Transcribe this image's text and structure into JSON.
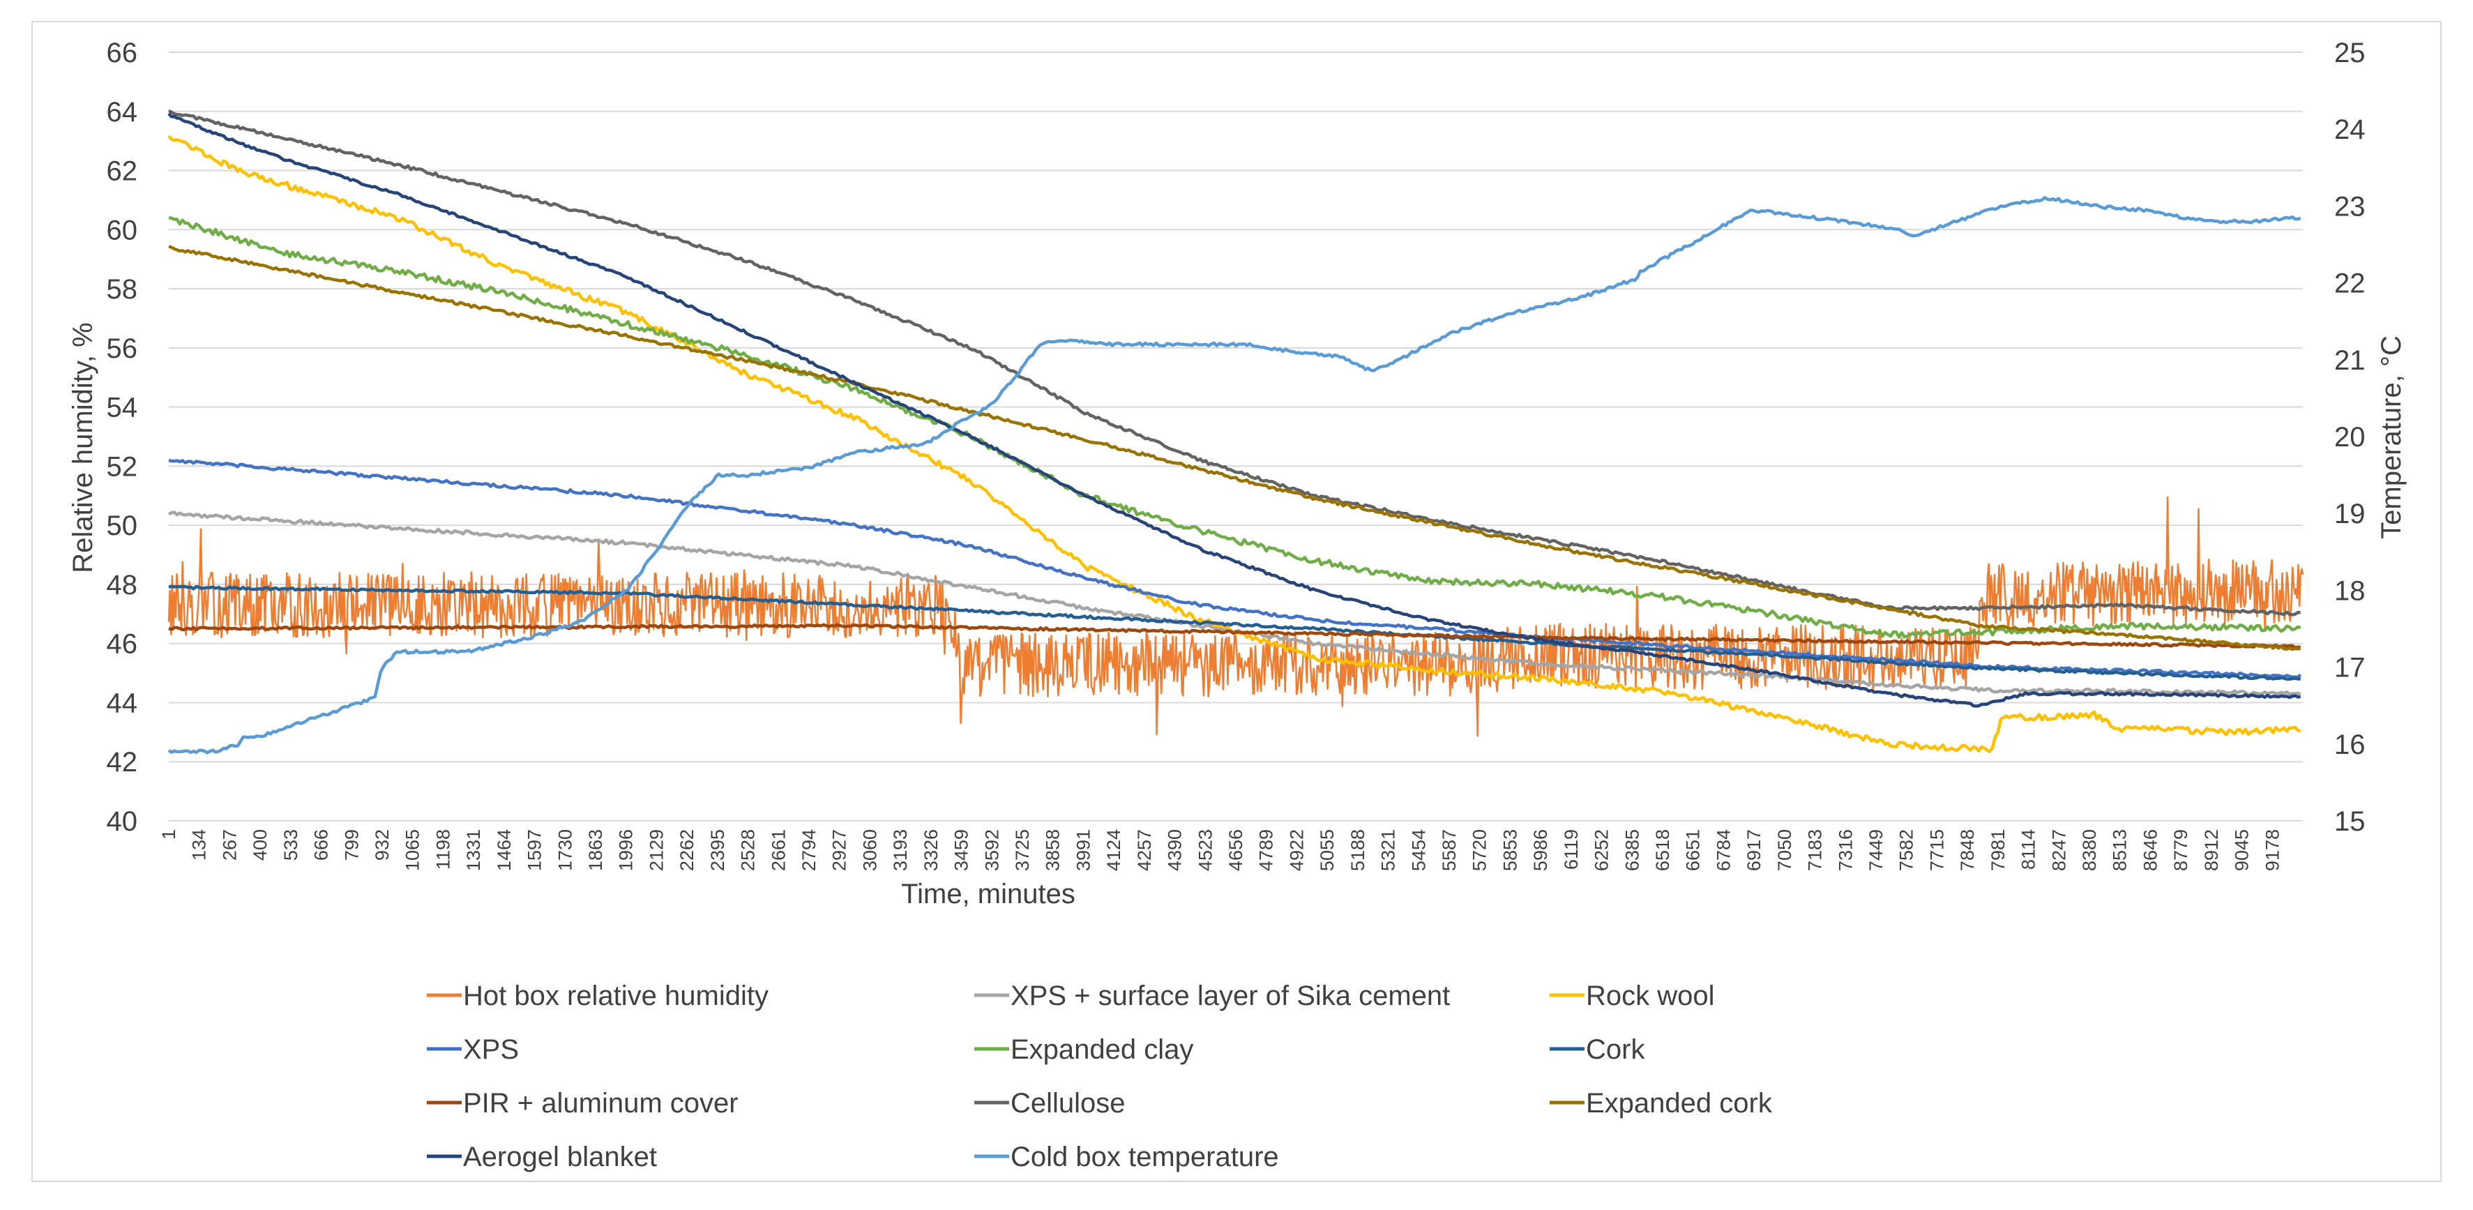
{
  "chart_data": {
    "type": "line",
    "xlabel": "Time, minutes",
    "ylabel_left": "Relative humidity, %",
    "ylabel_right": "Temperature, °C",
    "xlim": [
      1,
      9311
    ],
    "ylim_left": [
      40,
      66
    ],
    "ylim_right": [
      15,
      25
    ],
    "yticks_left": [
      "40",
      "42",
      "44",
      "46",
      "48",
      "50",
      "52",
      "54",
      "56",
      "58",
      "60",
      "62",
      "64",
      "66"
    ],
    "yticks_right": [
      "15",
      "16",
      "17",
      "18",
      "19",
      "20",
      "21",
      "22",
      "23",
      "24",
      "25"
    ],
    "xticks": [
      "1",
      "134",
      "267",
      "400",
      "533",
      "666",
      "799",
      "932",
      "1065",
      "1198",
      "1331",
      "1464",
      "1597",
      "1730",
      "1863",
      "1996",
      "2129",
      "2262",
      "2395",
      "2528",
      "2661",
      "2794",
      "2927",
      "3060",
      "3193",
      "3326",
      "3459",
      "3592",
      "3725",
      "3858",
      "3991",
      "4124",
      "4257",
      "4390",
      "4523",
      "4656",
      "4789",
      "4922",
      "5055",
      "5188",
      "5321",
      "5454",
      "5587",
      "5720",
      "5853",
      "5986",
      "6119",
      "6252",
      "6385",
      "6518",
      "6651",
      "6784",
      "6917",
      "7050",
      "7183",
      "7316",
      "7449",
      "7582",
      "7715",
      "7848",
      "7981",
      "8114",
      "8247",
      "8380",
      "8513",
      "8646",
      "8779",
      "8912",
      "9045",
      "9178"
    ],
    "grid": true,
    "series": [
      {
        "name": "Hot box relative humidity",
        "color": "#ED7D31",
        "axis": "left",
        "noise": 1.1,
        "x": [
          1,
          3400,
          3460,
          5600,
          6000,
          7850,
          7930,
          9300
        ],
        "y": [
          47.3,
          47.3,
          45.3,
          45.3,
          45.6,
          45.5,
          47.6,
          47.8
        ]
      },
      {
        "name": "XPS + surface layer of Sika cement",
        "color": "#A5A5A5",
        "axis": "left",
        "noise": 0.06,
        "x": [
          1,
          1000,
          2000,
          3000,
          4000,
          5000,
          6000,
          7000,
          7500,
          8000,
          8500,
          9300
        ],
        "y": [
          50.4,
          49.9,
          49.4,
          48.6,
          47.2,
          46.0,
          45.3,
          44.9,
          44.6,
          44.4,
          44.4,
          44.3
        ]
      },
      {
        "name": "Rock wool",
        "color": "#FFC000",
        "axis": "left",
        "noise": 0.1,
        "x": [
          1,
          300,
          1000,
          1500,
          2000,
          2500,
          3000,
          3500,
          4000,
          4500,
          5000,
          5500,
          6000,
          6500,
          7000,
          7500,
          7950,
          8000,
          8200,
          8400,
          8500,
          8700,
          9000,
          9300
        ],
        "y": [
          63.2,
          62.0,
          60.4,
          58.6,
          57.2,
          55.2,
          53.6,
          51.5,
          48.6,
          46.8,
          45.5,
          45.1,
          44.8,
          44.4,
          43.6,
          42.6,
          42.4,
          43.5,
          43.5,
          43.6,
          43.1,
          43.1,
          43.0,
          43.1
        ]
      },
      {
        "name": "XPS",
        "color": "#4472C4",
        "axis": "left",
        "noise": 0.05,
        "x": [
          1,
          1000,
          2000,
          3000,
          3500,
          4000,
          4500,
          5000,
          6000,
          7000,
          8000,
          9300
        ],
        "y": [
          52.2,
          51.6,
          51.0,
          50.0,
          49.3,
          48.2,
          47.3,
          46.8,
          46.2,
          45.7,
          45.2,
          44.9
        ]
      },
      {
        "name": "Expanded clay",
        "color": "#70AD47",
        "axis": "left",
        "noise": 0.1,
        "x": [
          1,
          500,
          1000,
          1500,
          2000,
          2500,
          3000,
          3500,
          4000,
          4500,
          5000,
          5500,
          6000,
          6500,
          7000,
          7500,
          8000,
          8500,
          9300
        ],
        "y": [
          60.4,
          59.2,
          58.6,
          57.8,
          56.8,
          55.8,
          54.6,
          53.0,
          51.0,
          49.8,
          48.8,
          48.1,
          48.0,
          47.6,
          47.0,
          46.3,
          46.4,
          46.6,
          46.5
        ]
      },
      {
        "name": "Cork",
        "color": "#255E91",
        "axis": "left",
        "noise": 0.04,
        "x": [
          1,
          2000,
          3000,
          4000,
          5000,
          6000,
          7000,
          7800,
          8500,
          9300
        ],
        "y": [
          47.9,
          47.7,
          47.3,
          46.9,
          46.5,
          46.0,
          45.6,
          45.2,
          45.0,
          44.8
        ]
      },
      {
        "name": "PIR + aluminum cover",
        "color": "#9E480E",
        "axis": "left",
        "noise": 0.04,
        "x": [
          1,
          3000,
          6000,
          9300
        ],
        "y": [
          46.5,
          46.6,
          46.2,
          45.9
        ]
      },
      {
        "name": "Cellulose",
        "color": "#636363",
        "axis": "left",
        "noise": 0.05,
        "x": [
          1,
          1000,
          2000,
          2500,
          3000,
          3500,
          4000,
          4500,
          5000,
          5500,
          6000,
          6500,
          7000,
          7500,
          7950,
          8500,
          9300
        ],
        "y": [
          64.0,
          62.2,
          60.2,
          59.0,
          57.6,
          56.0,
          53.8,
          52.2,
          51.0,
          50.2,
          49.5,
          48.8,
          48.0,
          47.2,
          47.2,
          47.3,
          47.0
        ]
      },
      {
        "name": "Expanded cork",
        "color": "#997300",
        "axis": "left",
        "noise": 0.05,
        "x": [
          1,
          1000,
          2000,
          3000,
          4000,
          5000,
          6000,
          7000,
          7900,
          8500,
          9300
        ],
        "y": [
          59.4,
          57.9,
          56.4,
          54.8,
          52.9,
          50.9,
          49.3,
          47.9,
          46.6,
          46.3,
          45.8
        ]
      },
      {
        "name": "Aerogel blanket",
        "color": "#264478",
        "axis": "left",
        "noise": 0.04,
        "x": [
          1,
          250,
          500,
          1000,
          1500,
          2000,
          2500,
          3000,
          3500,
          4000,
          4500,
          5000,
          5500,
          6000,
          6500,
          7000,
          7500,
          7900,
          8100,
          8500,
          9300
        ],
        "y": [
          63.9,
          63.1,
          62.4,
          61.2,
          59.8,
          58.4,
          56.6,
          54.8,
          53.0,
          51.0,
          49.2,
          47.8,
          46.8,
          46.1,
          45.6,
          45.0,
          44.3,
          43.9,
          44.3,
          44.3,
          44.2
        ]
      },
      {
        "name": "Cold box temperature",
        "color": "#5B9BD5",
        "axis": "right",
        "noise": 0.02,
        "x": [
          1,
          200,
          310,
          320,
          400,
          700,
          850,
          900,
          930,
          1000,
          1300,
          1600,
          1800,
          1950,
          2000,
          2100,
          2262,
          2400,
          2528,
          2800,
          3000,
          3300,
          3459,
          3500,
          3600,
          3700,
          3800,
          3900,
          4100,
          4300,
          4700,
          4922,
          5100,
          5250,
          5400,
          5600,
          5853,
          6150,
          6400,
          6420,
          6700,
          6900,
          7050,
          7300,
          7550,
          7600,
          7900,
          8000,
          8200,
          8400,
          8600,
          8900,
          9100,
          9300
        ],
        "y": [
          15.9,
          15.9,
          16.0,
          16.1,
          16.1,
          16.4,
          16.55,
          16.6,
          17.0,
          17.2,
          17.2,
          17.4,
          17.6,
          17.9,
          18.0,
          18.4,
          19.1,
          19.5,
          19.5,
          19.6,
          19.8,
          19.9,
          20.2,
          20.25,
          20.45,
          20.8,
          21.2,
          21.25,
          21.2,
          21.2,
          21.2,
          21.1,
          21.05,
          20.85,
          21.05,
          21.35,
          21.6,
          21.8,
          22.05,
          22.15,
          22.6,
          22.95,
          22.9,
          22.8,
          22.7,
          22.6,
          22.9,
          23.0,
          23.1,
          23.0,
          22.95,
          22.8,
          22.8,
          22.85
        ]
      }
    ]
  }
}
